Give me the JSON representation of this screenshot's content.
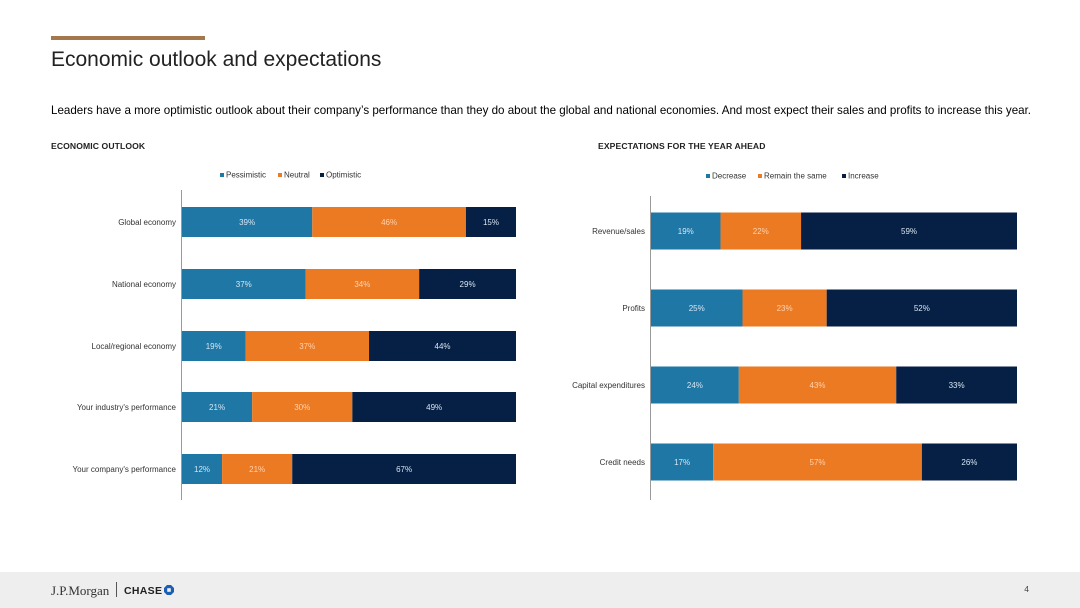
{
  "header": {
    "title": "Economic outlook and expectations",
    "subtitle": "Leaders have a more optimistic outlook about their company’s performance than they do about the global and national economies. And most expect their sales and profits to increase this year."
  },
  "colors": {
    "accent_rule": "#a3784c",
    "blue": "#1f77a6",
    "orange": "#eb7a22",
    "navy": "#061f44"
  },
  "chart_data": [
    {
      "type": "bar",
      "orientation": "horizontal",
      "stacked": true,
      "title": "ECONOMIC OUTLOOK",
      "categories": [
        "Global economy",
        "National economy",
        "Local/regional economy",
        "Your industry's performance",
        "Your company's performance"
      ],
      "series": [
        {
          "name": "Pessimistic",
          "color": "#1f77a6",
          "values": [
            39,
            37,
            19,
            21,
            12
          ]
        },
        {
          "name": "Neutral",
          "color": "#eb7a22",
          "values": [
            46,
            34,
            37,
            30,
            21
          ]
        },
        {
          "name": "Optimistic",
          "color": "#061f44",
          "values": [
            15,
            29,
            44,
            49,
            67
          ]
        }
      ],
      "value_suffix": "%",
      "xlim": [
        0,
        100
      ],
      "legend": "top",
      "grid": false
    },
    {
      "type": "bar",
      "orientation": "horizontal",
      "stacked": true,
      "title": "EXPECTATIONS FOR THE YEAR AHEAD",
      "categories": [
        "Revenue/sales",
        "Profits",
        "Capital expenditures",
        "Credit needs"
      ],
      "series": [
        {
          "name": "Decrease",
          "color": "#1f77a6",
          "values": [
            19,
            25,
            24,
            17
          ]
        },
        {
          "name": "Remain the same",
          "color": "#eb7a22",
          "values": [
            22,
            23,
            43,
            57
          ]
        },
        {
          "name": "Increase",
          "color": "#061f44",
          "values": [
            59,
            52,
            33,
            26
          ]
        }
      ],
      "value_suffix": "%",
      "xlim": [
        0,
        100
      ],
      "legend": "top",
      "grid": false
    }
  ],
  "footer": {
    "brand_left": "J.P.Morgan",
    "brand_right": "CHASE",
    "page_number": "4"
  }
}
